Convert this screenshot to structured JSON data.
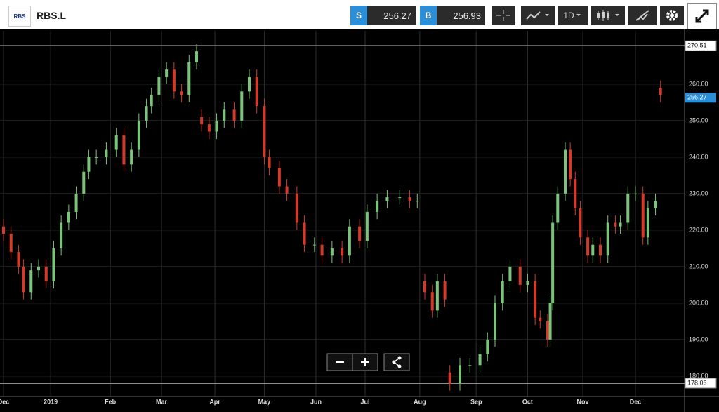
{
  "toolbar": {
    "logo": "RBS",
    "symbol": "RBS.L",
    "sell_label": "S",
    "sell": "256.27",
    "buy_label": "B",
    "buy": "256.93",
    "interval": "1D"
  },
  "chart_data": {
    "type": "candlestick",
    "x": [
      0,
      3,
      6,
      8,
      11,
      14,
      17,
      20,
      23,
      26,
      29,
      32,
      34,
      37,
      41,
      45,
      48,
      51,
      54,
      57,
      59,
      62,
      65,
      68,
      71,
      74,
      77,
      79,
      82,
      85,
      88,
      92,
      95,
      98,
      101,
      104,
      106,
      110,
      113,
      117,
      120,
      124,
      127,
      131,
      135,
      138,
      142,
      145,
      149,
      153,
      158,
      162,
      165,
      168,
      171,
      173,
      176,
      178,
      182,
      186,
      190,
      193,
      196,
      199,
      202,
      206,
      209,
      212,
      214,
      217,
      218,
      219,
      221,
      224,
      226,
      228,
      230,
      233,
      235,
      238,
      241,
      244,
      246,
      249,
      252,
      255,
      257,
      260,
      262
    ],
    "open": [
      221,
      219,
      214,
      210,
      203,
      209,
      210,
      206,
      215,
      222,
      225,
      230,
      236,
      240,
      240,
      242,
      246,
      238,
      242,
      250,
      254,
      257,
      262,
      264,
      258,
      257,
      266,
      251,
      249,
      247,
      250,
      253,
      250,
      258,
      262,
      254,
      240,
      237,
      232,
      230,
      222,
      216,
      216,
      213,
      215,
      213,
      221,
      217,
      225,
      228,
      229,
      229,
      228,
      206,
      203,
      198,
      206,
      181,
      178,
      183,
      183,
      186,
      190,
      200,
      206,
      210,
      205,
      206,
      196,
      195,
      190,
      200,
      222,
      230,
      242,
      234,
      226,
      218,
      213,
      216,
      213,
      222,
      221,
      222,
      230,
      230,
      218,
      226,
      259
    ],
    "high": [
      223,
      221,
      216,
      212,
      211,
      212,
      212,
      217,
      224,
      227,
      232,
      238,
      242,
      242,
      244,
      248,
      248,
      244,
      252,
      256,
      259,
      264,
      266,
      266,
      260,
      268,
      271,
      253,
      251,
      252,
      255,
      255,
      260,
      264,
      264,
      256,
      242,
      239,
      234,
      232,
      224,
      218,
      218,
      217,
      217,
      223,
      223,
      227,
      230,
      231,
      231,
      231,
      230,
      208,
      205,
      208,
      208,
      183,
      185,
      185,
      188,
      192,
      202,
      208,
      212,
      212,
      208,
      208,
      198,
      197,
      202,
      224,
      232,
      244,
      244,
      236,
      228,
      220,
      218,
      218,
      224,
      224,
      224,
      232,
      232,
      232,
      228,
      230,
      261
    ],
    "low": [
      217,
      212,
      208,
      201,
      201,
      207,
      204,
      204,
      213,
      220,
      223,
      228,
      234,
      238,
      238,
      240,
      236,
      236,
      240,
      248,
      252,
      255,
      260,
      256,
      255,
      255,
      264,
      247,
      245,
      245,
      248,
      248,
      248,
      256,
      252,
      238,
      235,
      230,
      228,
      220,
      214,
      214,
      211,
      211,
      211,
      211,
      215,
      215,
      223,
      226,
      227,
      226,
      226,
      201,
      196,
      196,
      199,
      176,
      176,
      181,
      181,
      184,
      188,
      198,
      204,
      203,
      203,
      194,
      193,
      188,
      188,
      198,
      220,
      228,
      232,
      224,
      216,
      211,
      211,
      211,
      211,
      219,
      219,
      220,
      228,
      216,
      216,
      224,
      255
    ],
    "close": [
      219,
      214,
      210,
      203,
      209,
      210,
      206,
      215,
      222,
      225,
      230,
      236,
      240,
      240,
      242,
      246,
      238,
      242,
      250,
      254,
      257,
      262,
      264,
      258,
      257,
      266,
      269,
      249,
      247,
      250,
      253,
      250,
      258,
      262,
      254,
      240,
      237,
      232,
      230,
      222,
      216,
      216,
      213,
      215,
      213,
      221,
      217,
      225,
      228,
      229,
      229,
      228,
      228,
      203,
      198,
      206,
      201,
      178,
      183,
      183,
      186,
      190,
      200,
      206,
      210,
      205,
      206,
      196,
      195,
      190,
      200,
      222,
      230,
      242,
      234,
      226,
      218,
      213,
      216,
      213,
      222,
      221,
      222,
      230,
      230,
      218,
      226,
      228,
      257
    ],
    "up_color": "#7cc47c",
    "down_color": "#d23a2c",
    "xlim": [
      -1.4,
      271.6
    ],
    "xticks": [
      {
        "value": 0,
        "label": "Dec"
      },
      {
        "value": 18.8,
        "label": "2019"
      },
      {
        "value": 42.6,
        "label": "Feb"
      },
      {
        "value": 63,
        "label": "Mar"
      },
      {
        "value": 84.3,
        "label": "Apr"
      },
      {
        "value": 104,
        "label": "May"
      },
      {
        "value": 124.6,
        "label": "Jun"
      },
      {
        "value": 144.2,
        "label": "Jul"
      },
      {
        "value": 166,
        "label": "Aug"
      },
      {
        "value": 188.5,
        "label": "Sep"
      },
      {
        "value": 209,
        "label": "Oct"
      },
      {
        "value": 231,
        "label": "Nov"
      },
      {
        "value": 252,
        "label": "Dec"
      }
    ],
    "ylim": [
      174.4,
      274.6
    ],
    "yticks": [
      {
        "value": 180,
        "label": "180.00"
      },
      {
        "value": 190,
        "label": "190.00"
      },
      {
        "value": 200,
        "label": "200.00"
      },
      {
        "value": 210,
        "label": "210.00"
      },
      {
        "value": 220,
        "label": "220.00"
      },
      {
        "value": 230,
        "label": "230.00"
      },
      {
        "value": 240,
        "label": "240.00"
      },
      {
        "value": 250,
        "label": "250.00"
      },
      {
        "value": 260,
        "label": "260.00"
      }
    ],
    "grid": true,
    "price_lines": [
      270.51,
      178.06
    ],
    "last_price": 256.27
  }
}
